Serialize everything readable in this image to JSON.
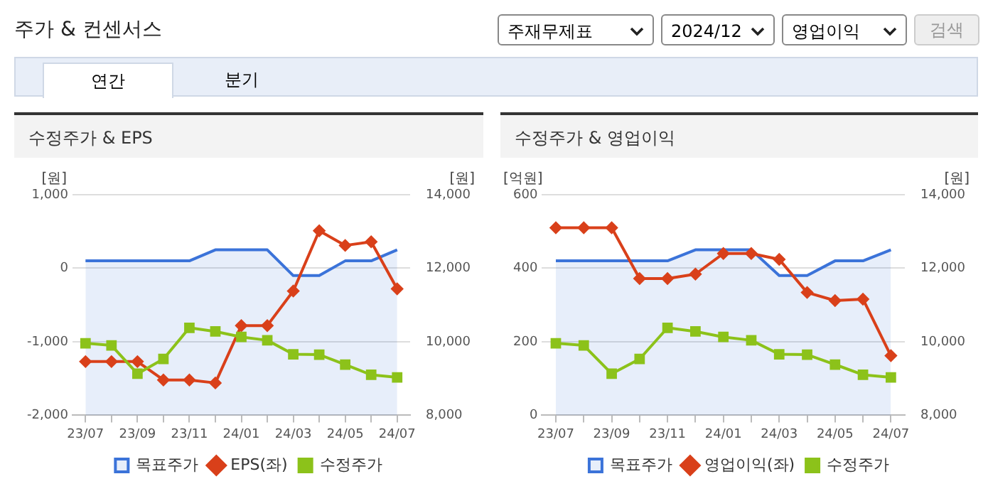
{
  "chart_data": [
    {
      "type": "line",
      "title": "수정주가 & EPS",
      "ylabel": "[원]",
      "y2label": "[원]",
      "annotations": [
        "주가 & 컨센서스",
        "주재무제표",
        "2024/12",
        "영업이익",
        "검색",
        "연간",
        "분기"
      ],
      "categories": [
        "23/07",
        null,
        "23/09",
        null,
        "23/11",
        null,
        "24/01",
        null,
        "24/03",
        null,
        "24/05",
        null,
        "24/07"
      ],
      "series": [
        {
          "name": "목표주가",
          "type": "area",
          "axis": "y2",
          "marker": "none",
          "color": "#3b73d9",
          "values": [
            12200,
            12200,
            12200,
            12200,
            12200,
            12500,
            12500,
            12500,
            11800,
            11800,
            12200,
            12200,
            12500
          ]
        },
        {
          "name": "EPS(좌)",
          "type": "line",
          "marker": "diamond",
          "color": "#d9401a",
          "values": [
            -1270,
            -1270,
            -1270,
            -1520,
            -1520,
            -1560,
            -780,
            -780,
            -310,
            510,
            310,
            360,
            -280
          ]
        },
        {
          "name": "수정주가",
          "type": "line",
          "axis": "y2",
          "marker": "square",
          "color": "#8cc21a",
          "values": [
            9960,
            9900,
            9130,
            9530,
            10380,
            10280,
            10130,
            10040,
            9660,
            9650,
            9380,
            9100,
            9030
          ]
        }
      ],
      "ylim": [
        -2000,
        1000
      ],
      "yticks": [
        {
          "value": -2000,
          "label": "-2,000"
        },
        {
          "value": -1000,
          "label": "-1,000"
        },
        0,
        {
          "value": 1000,
          "label": "1,000"
        }
      ],
      "y2lim": [
        8000,
        14000
      ],
      "y2ticks": [
        {
          "value": 8000,
          "label": "8,000"
        },
        {
          "value": 10000,
          "label": "10,000"
        },
        {
          "value": 12000,
          "label": "12,000"
        },
        {
          "value": 14000,
          "label": "14,000"
        }
      ],
      "grid": "y",
      "legend": "bottom"
    },
    {
      "type": "line",
      "title": "수정주가 & 영업이익",
      "ylabel": "[억원]",
      "y2label": "[원]",
      "categories": [
        "23/07",
        null,
        "23/09",
        null,
        "23/11",
        null,
        "24/01",
        null,
        "24/03",
        null,
        "24/05",
        null,
        "24/07"
      ],
      "series": [
        {
          "name": "목표주가",
          "type": "area",
          "axis": "y2",
          "marker": "none",
          "color": "#3b73d9",
          "values": [
            12200,
            12200,
            12200,
            12200,
            12200,
            12500,
            12500,
            12500,
            11800,
            11800,
            12200,
            12200,
            12500
          ]
        },
        {
          "name": "영업이익(좌)",
          "type": "line",
          "marker": "diamond",
          "color": "#d9401a",
          "values": [
            510,
            510,
            510,
            372,
            372,
            384,
            440,
            440,
            424,
            334,
            312,
            316,
            162
          ]
        },
        {
          "name": "수정주가",
          "type": "line",
          "axis": "y2",
          "marker": "square",
          "color": "#8cc21a",
          "values": [
            9960,
            9900,
            9130,
            9530,
            10380,
            10280,
            10130,
            10040,
            9660,
            9650,
            9380,
            9100,
            9030
          ]
        }
      ],
      "ylim": [
        0,
        600
      ],
      "yticks": [
        0,
        200,
        400,
        600
      ],
      "y2lim": [
        8000,
        14000
      ],
      "y2ticks": [
        {
          "value": 8000,
          "label": "8,000"
        },
        {
          "value": 10000,
          "label": "10,000"
        },
        {
          "value": 12000,
          "label": "12,000"
        },
        {
          "value": 14000,
          "label": "14,000"
        }
      ],
      "grid": "y",
      "legend": "bottom"
    }
  ]
}
